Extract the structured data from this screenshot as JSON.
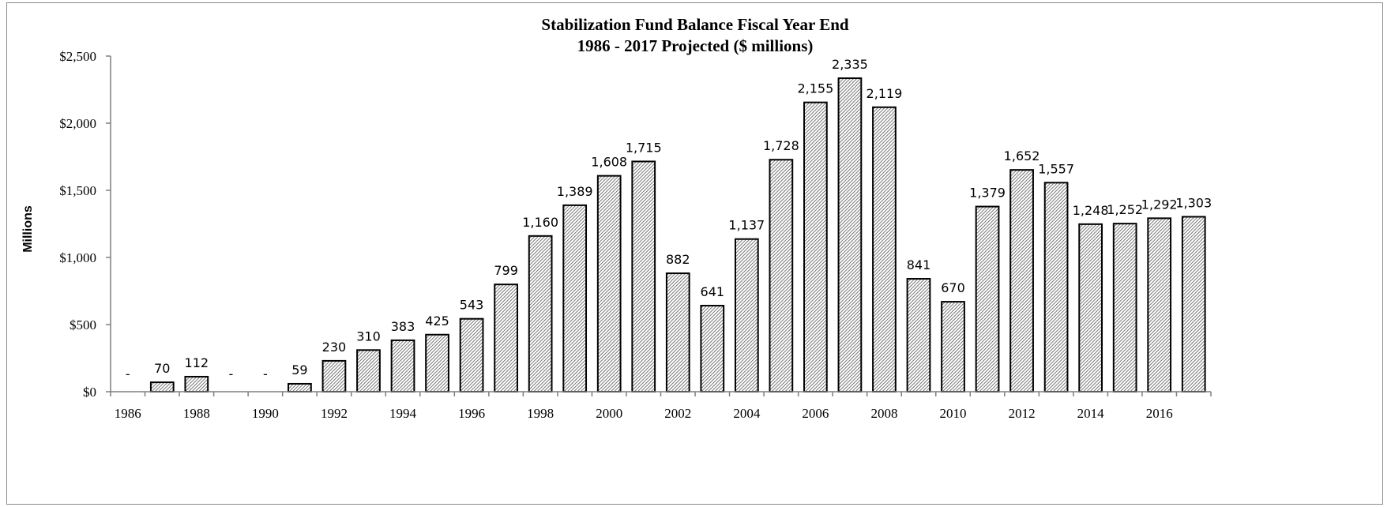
{
  "chart_data": {
    "type": "bar",
    "title": "Stabilization Fund Balance Fiscal Year End",
    "subtitle": "1986 - 2017 Projected ($ millions)",
    "ylabel": "Millions",
    "xlabel": "",
    "ylim": [
      0,
      2500
    ],
    "ytick_labels": [
      "$0",
      "$500",
      "$1,000",
      "$1,500",
      "$2,000",
      "$2,500"
    ],
    "categories": [
      1986,
      1987,
      1988,
      1989,
      1990,
      1991,
      1992,
      1993,
      1994,
      1995,
      1996,
      1997,
      1998,
      1999,
      2000,
      2001,
      2002,
      2003,
      2004,
      2005,
      2006,
      2007,
      2008,
      2009,
      2010,
      2011,
      2012,
      2013,
      2014,
      2015,
      2016,
      2017
    ],
    "xtick_labels": [
      "1986",
      "1988",
      "1990",
      "1992",
      "1994",
      "1996",
      "1998",
      "2000",
      "2002",
      "2004",
      "2006",
      "2008",
      "2010",
      "2012",
      "2014",
      "2016"
    ],
    "values": [
      0,
      70,
      112,
      0,
      0,
      59,
      230,
      310,
      383,
      425,
      543,
      799,
      1160,
      1389,
      1608,
      1715,
      882,
      641,
      1137,
      1728,
      2155,
      2335,
      2119,
      841,
      670,
      1379,
      1652,
      1557,
      1248,
      1252,
      1292,
      1303
    ],
    "data_labels": [
      "-",
      "70",
      "112",
      "-",
      "-",
      "59",
      "230",
      "310",
      "383",
      "425",
      "543",
      "799",
      "1,160",
      "1,389",
      "1,608",
      "1,715",
      "882",
      "641",
      "1,137",
      "1,728",
      "2,155",
      "2,335",
      "2,119",
      "841",
      "670",
      "1,379",
      "1,652",
      "1,557",
      "1,248",
      "1,252",
      "1,292",
      "1,303"
    ],
    "grid": false,
    "legend": "none",
    "bar_fill": "diagonal-hatch",
    "colors": {
      "bar_stroke": "#000000",
      "hatch": "#555555",
      "axis": "#7f7f7f"
    }
  }
}
